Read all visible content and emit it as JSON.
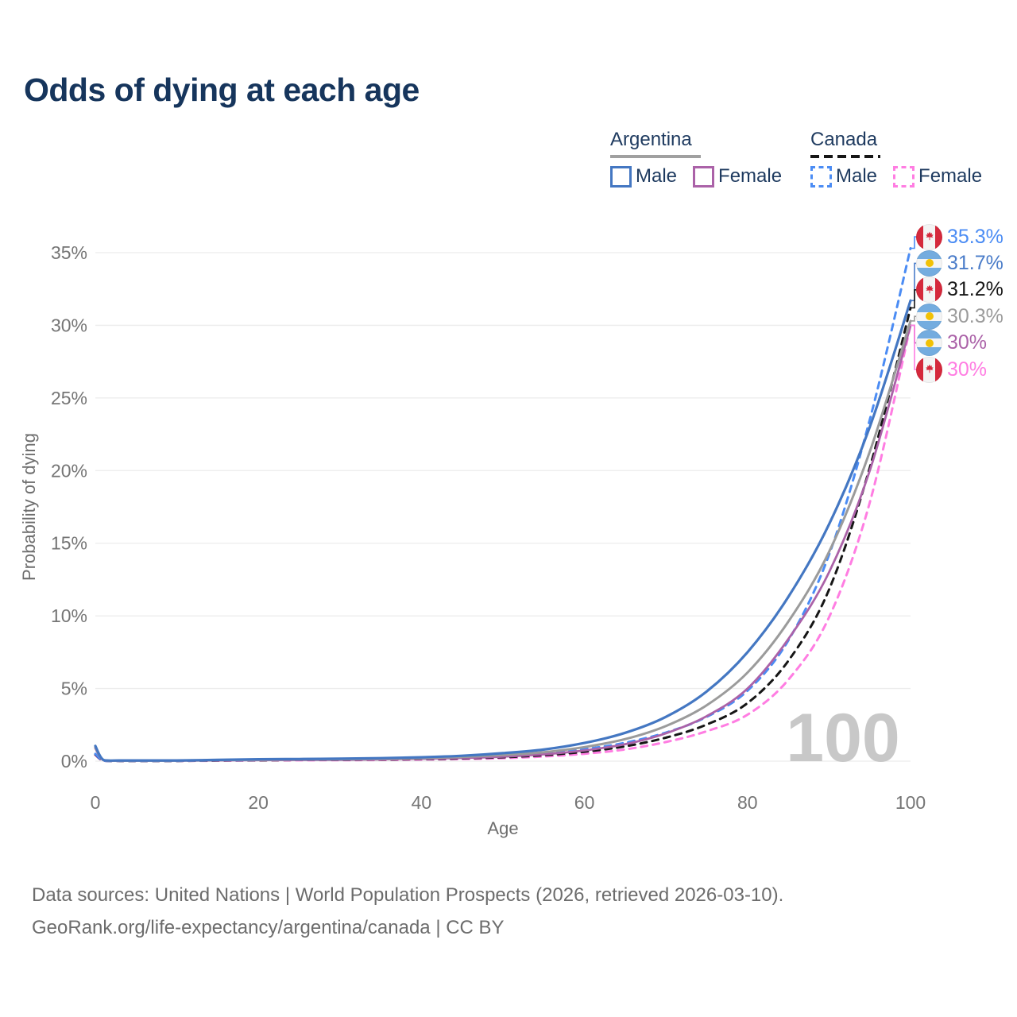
{
  "title": "Odds of dying at each age",
  "legend": {
    "groups": [
      {
        "label": "Argentina",
        "line_color": "#a0a0a0",
        "line_style": "solid",
        "items": [
          {
            "label": "Male",
            "color": "#4477c2",
            "style": "solid"
          },
          {
            "label": "Female",
            "color": "#ab62a8",
            "style": "solid"
          }
        ]
      },
      {
        "label": "Canada",
        "line_color": "#161616",
        "line_style": "dashed",
        "items": [
          {
            "label": "Male",
            "color": "#4b8cf4",
            "style": "dashed"
          },
          {
            "label": "Female",
            "color": "#ff7de2",
            "style": "dashed"
          }
        ]
      }
    ]
  },
  "chart_data": {
    "type": "line",
    "title": "Odds of dying at each age",
    "xlabel": "Age",
    "ylabel": "Probability of dying",
    "xlim": [
      0,
      100
    ],
    "ylim": [
      0,
      35
    ],
    "x_ticks": [
      "0",
      "20",
      "40",
      "60",
      "80",
      "100"
    ],
    "y_ticks": [
      "0%",
      "5%",
      "10%",
      "15%",
      "20%",
      "25%",
      "30%",
      "35%"
    ],
    "grid": "horizontal",
    "legend_position": "top-right",
    "watermark": "100",
    "series": [
      {
        "id": "argentina-male",
        "name": "Argentina Male",
        "color": "#4477c2",
        "dash": "solid",
        "width": 3.2,
        "end_label": "31.7%",
        "points": [
          [
            0,
            1.05
          ],
          [
            1,
            0.08
          ],
          [
            3,
            0.05
          ],
          [
            5,
            0.05
          ],
          [
            10,
            0.05
          ],
          [
            15,
            0.09
          ],
          [
            20,
            0.13
          ],
          [
            25,
            0.15
          ],
          [
            30,
            0.17
          ],
          [
            35,
            0.21
          ],
          [
            40,
            0.27
          ],
          [
            45,
            0.37
          ],
          [
            50,
            0.55
          ],
          [
            55,
            0.8
          ],
          [
            60,
            1.25
          ],
          [
            65,
            1.95
          ],
          [
            70,
            3.05
          ],
          [
            75,
            4.8
          ],
          [
            80,
            7.5
          ],
          [
            85,
            11.3
          ],
          [
            90,
            16.3
          ],
          [
            95,
            23.0
          ],
          [
            100,
            31.7
          ]
        ]
      },
      {
        "id": "argentina-combined",
        "name": "Argentina",
        "color": "#9b9b9b",
        "dash": "solid",
        "width": 3,
        "end_label": "30.3%",
        "points": [
          [
            0,
            0.95
          ],
          [
            1,
            0.07
          ],
          [
            3,
            0.04
          ],
          [
            5,
            0.04
          ],
          [
            10,
            0.04
          ],
          [
            15,
            0.07
          ],
          [
            20,
            0.1
          ],
          [
            25,
            0.12
          ],
          [
            30,
            0.13
          ],
          [
            35,
            0.16
          ],
          [
            40,
            0.21
          ],
          [
            45,
            0.29
          ],
          [
            50,
            0.42
          ],
          [
            55,
            0.62
          ],
          [
            60,
            0.97
          ],
          [
            65,
            1.52
          ],
          [
            70,
            2.42
          ],
          [
            75,
            3.85
          ],
          [
            80,
            6.1
          ],
          [
            85,
            9.6
          ],
          [
            90,
            14.4
          ],
          [
            95,
            21.3
          ],
          [
            100,
            30.3
          ]
        ]
      },
      {
        "id": "argentina-female",
        "name": "Argentina Female",
        "color": "#ab62a8",
        "dash": "solid",
        "width": 2.8,
        "end_label": "30%",
        "points": [
          [
            0,
            0.88
          ],
          [
            1,
            0.06
          ],
          [
            3,
            0.035
          ],
          [
            5,
            0.035
          ],
          [
            10,
            0.035
          ],
          [
            15,
            0.05
          ],
          [
            20,
            0.07
          ],
          [
            25,
            0.08
          ],
          [
            30,
            0.09
          ],
          [
            35,
            0.12
          ],
          [
            40,
            0.16
          ],
          [
            45,
            0.22
          ],
          [
            50,
            0.31
          ],
          [
            55,
            0.47
          ],
          [
            60,
            0.74
          ],
          [
            65,
            1.17
          ],
          [
            70,
            1.92
          ],
          [
            75,
            3.1
          ],
          [
            80,
            5.0
          ],
          [
            85,
            8.4
          ],
          [
            90,
            13.0
          ],
          [
            95,
            20.0
          ],
          [
            100,
            30.0
          ]
        ]
      },
      {
        "id": "canada-male",
        "name": "Canada Male",
        "color": "#4b8cf4",
        "dash": "dashed",
        "width": 3,
        "end_label": "35.3%",
        "points": [
          [
            0,
            0.5
          ],
          [
            1,
            0.04
          ],
          [
            3,
            0.02
          ],
          [
            5,
            0.02
          ],
          [
            10,
            0.02
          ],
          [
            15,
            0.05
          ],
          [
            20,
            0.08
          ],
          [
            25,
            0.1
          ],
          [
            30,
            0.12
          ],
          [
            35,
            0.14
          ],
          [
            40,
            0.18
          ],
          [
            45,
            0.24
          ],
          [
            50,
            0.34
          ],
          [
            55,
            0.52
          ],
          [
            60,
            0.82
          ],
          [
            65,
            1.27
          ],
          [
            70,
            1.97
          ],
          [
            75,
            3.05
          ],
          [
            80,
            4.85
          ],
          [
            85,
            8.3
          ],
          [
            90,
            14.2
          ],
          [
            95,
            23.5
          ],
          [
            100,
            35.3
          ]
        ]
      },
      {
        "id": "canada-combined",
        "name": "Canada",
        "color": "#161616",
        "dash": "dashed",
        "width": 3,
        "end_label": "31.2%",
        "points": [
          [
            0,
            0.46
          ],
          [
            1,
            0.035
          ],
          [
            3,
            0.018
          ],
          [
            5,
            0.018
          ],
          [
            10,
            0.018
          ],
          [
            15,
            0.04
          ],
          [
            20,
            0.06
          ],
          [
            25,
            0.08
          ],
          [
            30,
            0.09
          ],
          [
            35,
            0.11
          ],
          [
            40,
            0.14
          ],
          [
            45,
            0.19
          ],
          [
            50,
            0.27
          ],
          [
            55,
            0.41
          ],
          [
            60,
            0.65
          ],
          [
            65,
            1.02
          ],
          [
            70,
            1.62
          ],
          [
            75,
            2.52
          ],
          [
            80,
            4.0
          ],
          [
            85,
            6.9
          ],
          [
            90,
            11.8
          ],
          [
            95,
            20.2
          ],
          [
            100,
            31.2
          ]
        ]
      },
      {
        "id": "canada-female",
        "name": "Canada Female",
        "color": "#ff7de2",
        "dash": "dashed",
        "width": 3,
        "end_label": "30%",
        "points": [
          [
            0,
            0.42
          ],
          [
            1,
            0.03
          ],
          [
            3,
            0.015
          ],
          [
            5,
            0.015
          ],
          [
            10,
            0.015
          ],
          [
            15,
            0.03
          ],
          [
            20,
            0.05
          ],
          [
            25,
            0.06
          ],
          [
            30,
            0.07
          ],
          [
            35,
            0.08
          ],
          [
            40,
            0.11
          ],
          [
            45,
            0.15
          ],
          [
            50,
            0.21
          ],
          [
            55,
            0.32
          ],
          [
            60,
            0.51
          ],
          [
            65,
            0.81
          ],
          [
            70,
            1.32
          ],
          [
            75,
            2.06
          ],
          [
            80,
            3.2
          ],
          [
            85,
            5.6
          ],
          [
            90,
            9.9
          ],
          [
            95,
            17.8
          ],
          [
            100,
            30.0
          ]
        ]
      }
    ]
  },
  "end_labels": [
    {
      "series": "Canada Male",
      "value": "35.3%",
      "pct": 35.3,
      "flag": "canada",
      "color": "#4b8cf4"
    },
    {
      "series": "Argentina Male",
      "value": "31.7%",
      "pct": 31.7,
      "flag": "argentina",
      "color": "#4a7cc9"
    },
    {
      "series": "Canada",
      "value": "31.2%",
      "pct": 31.2,
      "flag": "canada",
      "color": "#161616"
    },
    {
      "series": "Argentina",
      "value": "30.3%",
      "pct": 30.3,
      "flag": "argentina",
      "color": "#9b9b9b"
    },
    {
      "series": "Argentina Female",
      "value": "30%",
      "pct": 30.0,
      "flag": "argentina",
      "color": "#ab62a8"
    },
    {
      "series": "Canada Female",
      "value": "30%",
      "pct": 30.0,
      "flag": "canada",
      "color": "#ff7de2"
    }
  ],
  "footer": {
    "line1": "Data sources: United Nations | World Population Prospects (2026, retrieved 2026-03-10).",
    "line2": "GeoRank.org/life-expectancy/argentina/canada | CC BY"
  }
}
